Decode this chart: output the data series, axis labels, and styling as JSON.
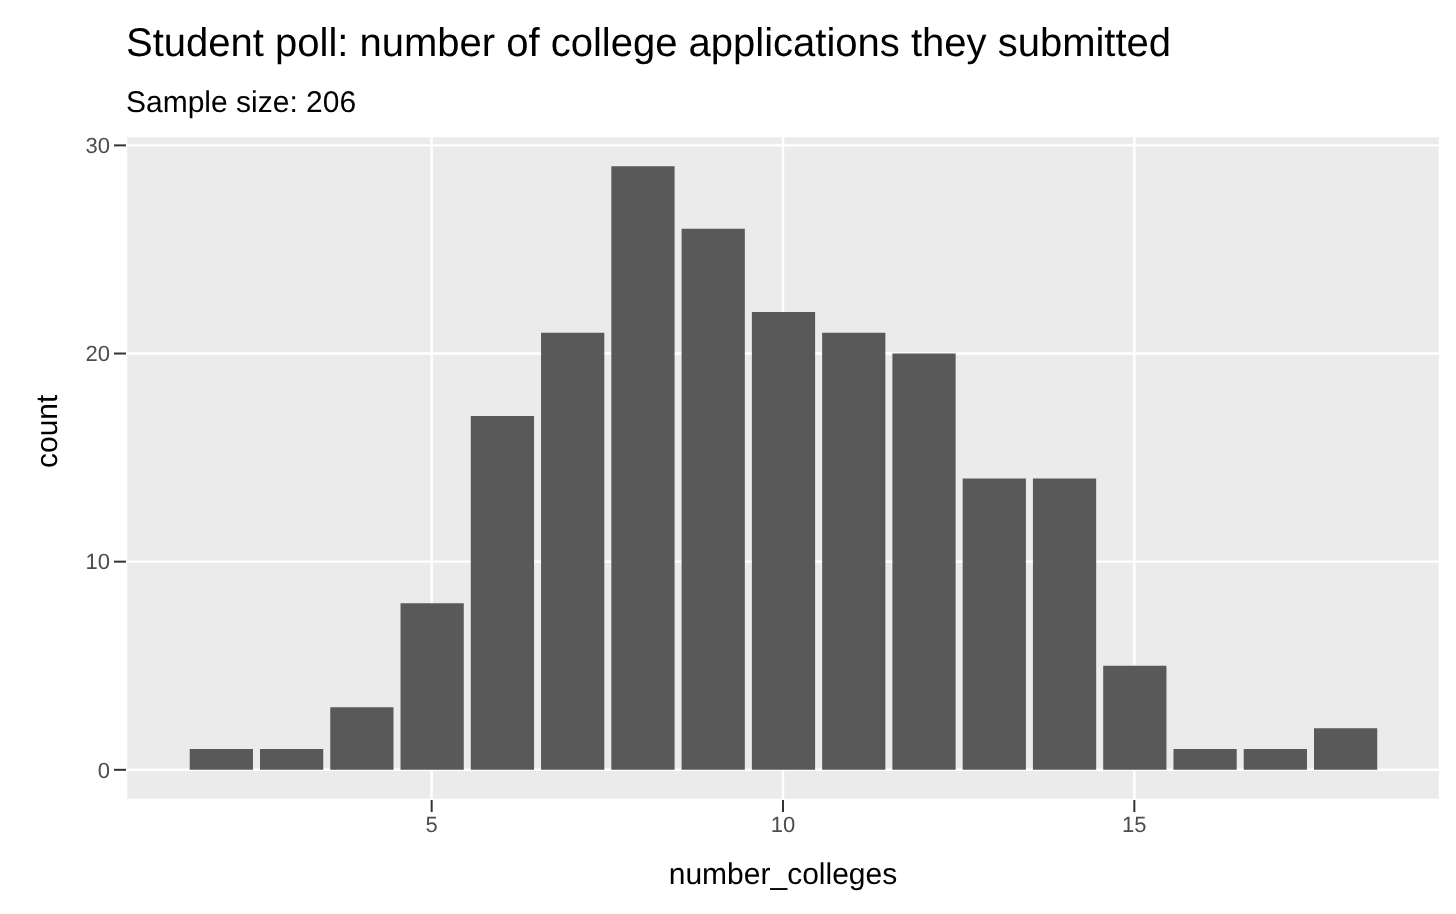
{
  "chart_data": {
    "type": "histogram",
    "title": "Student poll: number of college applications they submitted",
    "subtitle": "Sample size: 206",
    "xlabel": "number_colleges",
    "ylabel": "count",
    "bins": [
      1.5,
      2.5,
      3.5,
      4.5,
      5.5,
      6.5,
      7.5,
      8.5,
      9.5,
      10.5,
      11.5,
      12.5,
      13.5,
      14.5,
      15.5,
      16.5,
      17.5,
      18.5
    ],
    "values": [
      1,
      1,
      3,
      8,
      17,
      21,
      29,
      26,
      22,
      21,
      20,
      14,
      14,
      5,
      1,
      1,
      2
    ],
    "color": "#595959",
    "xlim": [
      0.65,
      19.35
    ],
    "xticks": [
      5,
      10,
      15
    ],
    "ylim": [
      -1.45,
      30.45
    ],
    "yticks": [
      0,
      10,
      20,
      30
    ],
    "grid": true
  }
}
